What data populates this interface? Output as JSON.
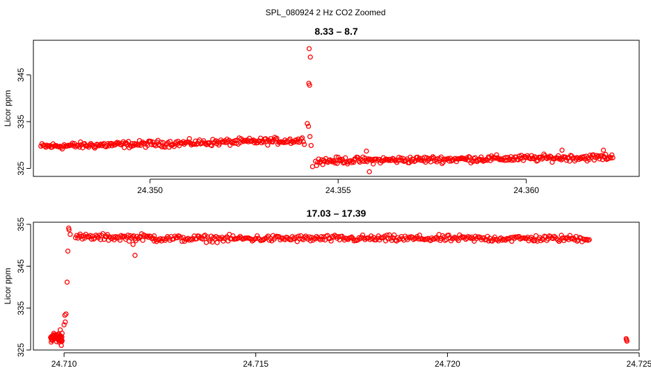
{
  "figure": {
    "suptitle": "SPL_080924  2 Hz CO2 Zoomed"
  },
  "colors": {
    "points": "#ff0000",
    "axes": "#000000",
    "background": "#ffffff"
  },
  "chart_data": [
    {
      "type": "scatter",
      "title": "8.33 – 8.7",
      "xlabel": "",
      "ylabel": "Licor ppm",
      "xlim": [
        24.3469,
        24.363
      ],
      "ylim": [
        323.3,
        352.4
      ],
      "xticks": [
        24.35,
        24.355,
        24.36
      ],
      "xtick_labels": [
        "24.350",
        "24.355",
        "24.360"
      ],
      "yticks": [
        325,
        335,
        345
      ],
      "ytick_labels": [
        "325",
        "335",
        "345"
      ],
      "grid": false,
      "segments": [
        {
          "x_start": 24.3471,
          "x_end": 24.3541,
          "y_start": 329.7,
          "y_end": 331.0,
          "noise": 0.9,
          "n": 260
        },
        {
          "x_start": 24.3544,
          "x_end": 24.3623,
          "y_start": 326.6,
          "y_end": 327.4,
          "noise": 0.9,
          "n": 290
        }
      ],
      "points": [
        {
          "x": 24.35423,
          "y": 350.6
        },
        {
          "x": 24.35426,
          "y": 348.8
        },
        {
          "x": 24.35422,
          "y": 343.2
        },
        {
          "x": 24.35424,
          "y": 342.8
        },
        {
          "x": 24.35418,
          "y": 334.6
        },
        {
          "x": 24.35421,
          "y": 334.0
        },
        {
          "x": 24.35425,
          "y": 331.8
        },
        {
          "x": 24.35428,
          "y": 329.9
        },
        {
          "x": 24.35432,
          "y": 325.4
        },
        {
          "x": 24.35583,
          "y": 324.3
        },
        {
          "x": 24.35575,
          "y": 328.7
        },
        {
          "x": 24.36095,
          "y": 328.9
        },
        {
          "x": 24.36205,
          "y": 328.9
        }
      ]
    },
    {
      "type": "scatter",
      "title": "17.03 – 17.39",
      "xlabel": "",
      "ylabel": "Licor ppm",
      "xlim": [
        24.7092,
        24.725
      ],
      "ylim": [
        325.0,
        355.5
      ],
      "xticks": [
        24.71,
        24.715,
        24.72,
        24.725
      ],
      "xtick_labels": [
        "24.710",
        "24.715",
        "24.720",
        "24.725"
      ],
      "yticks": [
        325,
        335,
        345,
        355
      ],
      "ytick_labels": [
        "325",
        "335",
        "345",
        "355"
      ],
      "grid": false,
      "segments": [
        {
          "x_start": 24.70965,
          "x_end": 24.70995,
          "y_start": 328.0,
          "y_end": 328.0,
          "noise": 1.4,
          "n": 45
        },
        {
          "x_start": 24.7103,
          "x_end": 24.71235,
          "y_start": 351.9,
          "y_end": 351.9,
          "noise": 1.0,
          "n": 70
        },
        {
          "x_start": 24.71235,
          "x_end": 24.7237,
          "y_start": 351.6,
          "y_end": 351.6,
          "noise": 1.0,
          "n": 360
        }
      ],
      "points": [
        {
          "x": 24.7099,
          "y": 329.8
        },
        {
          "x": 24.70993,
          "y": 326.1
        },
        {
          "x": 24.70995,
          "y": 329.0
        },
        {
          "x": 24.71,
          "y": 331.0
        },
        {
          "x": 24.71002,
          "y": 333.3
        },
        {
          "x": 24.71005,
          "y": 333.6
        },
        {
          "x": 24.71003,
          "y": 331.7
        },
        {
          "x": 24.71008,
          "y": 341.2
        },
        {
          "x": 24.7101,
          "y": 348.6
        },
        {
          "x": 24.71013,
          "y": 353.7
        },
        {
          "x": 24.71012,
          "y": 354.1
        },
        {
          "x": 24.71016,
          "y": 352.6
        },
        {
          "x": 24.71185,
          "y": 347.6
        },
        {
          "x": 24.7118,
          "y": 350.2
        },
        {
          "x": 24.72466,
          "y": 327.7
        },
        {
          "x": 24.72468,
          "y": 327.1
        },
        {
          "x": 24.72467,
          "y": 327.4
        }
      ]
    }
  ]
}
